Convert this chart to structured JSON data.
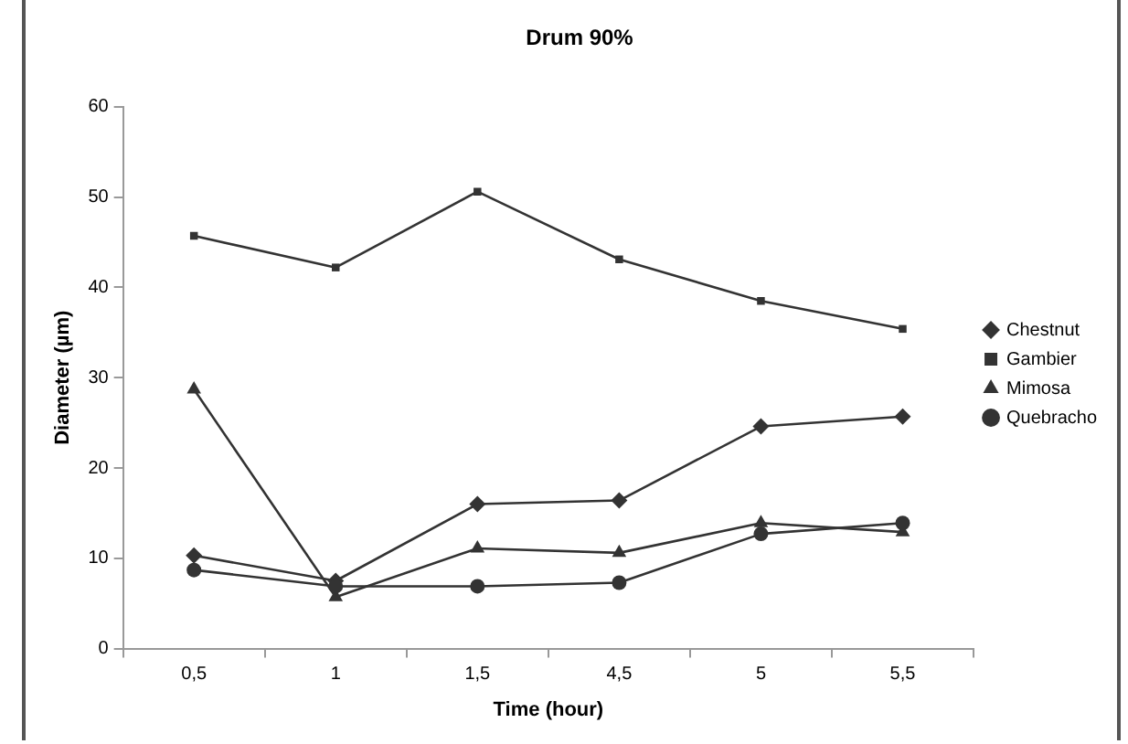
{
  "chart_data": {
    "type": "line",
    "title": "Drum 90%",
    "xlabel": "Time (hour)",
    "ylabel": "Diameter (µm)",
    "categories": [
      "0,5",
      "1",
      "1,5",
      "4,5",
      "5",
      "5,5"
    ],
    "series": [
      {
        "name": "Chestnut",
        "color": "#333333",
        "marker": "diamond",
        "values": [
          10.3,
          7.5,
          16,
          16.4,
          24.6,
          25.7
        ]
      },
      {
        "name": "Gambier",
        "color": "#333333",
        "marker": "square",
        "values": [
          45.7,
          42.2,
          50.6,
          43.1,
          38.5,
          35.4
        ]
      },
      {
        "name": "Mimosa",
        "color": "#333333",
        "marker": "triangle",
        "values": [
          28.7,
          5.7,
          11.1,
          10.6,
          13.9,
          12.9
        ]
      },
      {
        "name": "Quebracho",
        "color": "#333333",
        "marker": "circle",
        "values": [
          8.7,
          6.9,
          6.9,
          7.3,
          12.7,
          13.9
        ]
      }
    ],
    "ylim": [
      0,
      60
    ],
    "yticks": [
      0,
      10,
      20,
      30,
      40,
      50,
      60
    ],
    "grid": false,
    "legend": "right",
    "line_style": "solid"
  }
}
